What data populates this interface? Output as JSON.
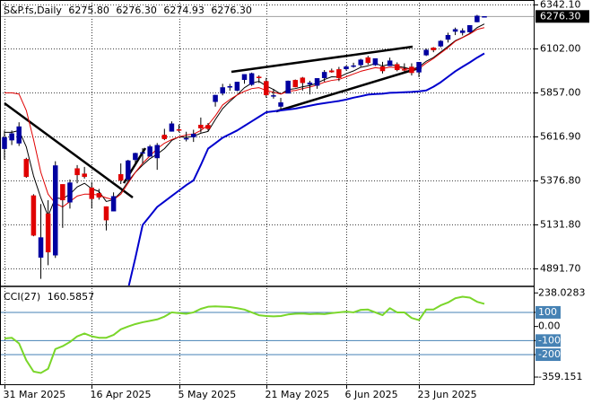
{
  "chart_data": [
    {
      "type": "candlestick",
      "header": {
        "symbol": "S&P.fs,Daily",
        "ohlc": [
          "6275.80",
          "6276.30",
          "6274.93",
          "6276.30"
        ]
      },
      "categories": [
        "31 Mar 2025",
        null,
        null,
        null,
        null,
        null,
        null,
        null,
        null,
        null,
        null,
        null,
        "16 Apr 2025",
        null,
        null,
        null,
        null,
        null,
        null,
        null,
        null,
        null,
        null,
        null,
        "5 May 2025",
        null,
        null,
        null,
        null,
        null,
        null,
        null,
        null,
        null,
        null,
        null,
        "21 May 2025",
        null,
        null,
        null,
        null,
        null,
        null,
        null,
        null,
        null,
        null,
        "6 Jun 2025",
        null,
        null,
        null,
        null,
        null,
        null,
        null,
        null,
        null,
        "23 Jun 2025",
        null,
        null,
        null,
        null,
        null,
        null,
        null,
        null,
        null
      ],
      "open": [
        5550,
        5597,
        5580,
        5492,
        5292,
        4953,
        5193,
        4965,
        5354,
        5256,
        5441,
        5412,
        5335,
        5305,
        5232,
        5207,
        5409,
        5381,
        5489,
        5529,
        5508,
        5499,
        5625,
        5645,
        5655,
        5605,
        5614,
        5680,
        5679,
        5808,
        5854,
        5887,
        5870,
        5929,
        5902,
        5944,
        5920,
        5842,
        5782,
        5854,
        5926,
        5939,
        5903,
        5897,
        5939,
        5978,
        5985,
        5988,
        6005,
        6010,
        6050,
        6010,
        6000,
        6005,
        6013,
        5985,
        5999,
        5970,
        6064,
        6104,
        6113,
        6150,
        6194,
        6187,
        6191,
        6246,
        6275.8
      ],
      "high": [
        5650,
        5650,
        5695,
        5500,
        5300,
        5246,
        5267,
        5481,
        5354,
        5381,
        5460,
        5450,
        5367,
        5329,
        5233,
        5310,
        5469,
        5489,
        5528,
        5553,
        5571,
        5581,
        5659,
        5700,
        5683,
        5643,
        5654,
        5721,
        5691,
        5846,
        5906,
        5906,
        5917,
        5958,
        5968,
        5953,
        5939,
        5878,
        5829,
        5924,
        5930,
        5944,
        5923,
        5937,
        5982,
        5990,
        5999,
        6007,
        6022,
        6044,
        6060,
        6046,
        6027,
        6050,
        6024,
        6019,
        6019,
        6025,
        6101,
        6108,
        6146,
        6187,
        6215,
        6211,
        6228,
        6285,
        6276.3
      ],
      "low": [
        5490,
        5570,
        5565,
        5390,
        5069,
        4835,
        4910,
        4950,
        5115,
        5221,
        5360,
        5386,
        5221,
        5270,
        5101,
        5207,
        5356,
        5372,
        5456,
        5468,
        5506,
        5434,
        5597,
        5644,
        5640,
        5590,
        5587,
        5639,
        5648,
        5781,
        5843,
        5868,
        5865,
        5907,
        5895,
        5911,
        5830,
        5825,
        5767,
        5854,
        5887,
        5869,
        5848,
        5879,
        5918,
        5967,
        5921,
        5979,
        5995,
        6000,
        6011,
        6005,
        5963,
        6004,
        5975,
        5974,
        5952,
        5943,
        6059,
        6080,
        6107,
        6133,
        6174,
        6172,
        6187,
        6244,
        6274.93
      ],
      "close": [
        5612,
        5633,
        5671,
        5396,
        5074,
        5062,
        4982,
        5457,
        5268,
        5363,
        5406,
        5396,
        5275,
        5283,
        5158,
        5288,
        5376,
        5484,
        5525,
        5529,
        5561,
        5569,
        5604,
        5687,
        5650,
        5607,
        5631,
        5663,
        5660,
        5844,
        5886,
        5892,
        5916,
        5958,
        5963,
        5940,
        5845,
        5842,
        5803,
        5922,
        5889,
        5912,
        5912,
        5936,
        5970,
        5971,
        5939,
        6000,
        6006,
        6038,
        6022,
        6045,
        5977,
        6033,
        5983,
        5981,
        5967,
        6025,
        6092,
        6092,
        6141,
        6173,
        6205,
        6198,
        6227,
        6279,
        6276.3
      ],
      "up_color": "#0000a0",
      "down_color": "#e00000",
      "series": [
        {
          "color": "#000000",
          "width": 1,
          "values": [
            5640,
            5640,
            5650,
            5560,
            5400,
            5280,
            5180,
            5280,
            5275,
            5300,
            5340,
            5360,
            5330,
            5315,
            5260,
            5270,
            5310,
            5370,
            5420,
            5460,
            5495,
            5520,
            5550,
            5595,
            5615,
            5612,
            5618,
            5635,
            5645,
            5710,
            5770,
            5810,
            5845,
            5885,
            5910,
            5920,
            5895,
            5875,
            5850,
            5875,
            5880,
            5890,
            5897,
            5910,
            5930,
            5945,
            5943,
            5962,
            5977,
            5997,
            6005,
            6018,
            6004,
            6014,
            6003,
            5996,
            5986,
            5999,
            6030,
            6051,
            6081,
            6112,
            6143,
            6161,
            6183,
            6215,
            6235
          ]
        },
        {
          "color": "#e00000",
          "width": 1,
          "values": [
            5857,
            5857,
            5850,
            5760,
            5600,
            5420,
            5300,
            5250,
            5230,
            5260,
            5290,
            5300,
            5300,
            5295,
            5280,
            5270,
            5300,
            5360,
            5420,
            5470,
            5510,
            5550,
            5580,
            5600,
            5615,
            5625,
            5630,
            5650,
            5680,
            5730,
            5790,
            5820,
            5845,
            5865,
            5880,
            5885,
            5870,
            5860,
            5850,
            5865,
            5870,
            5880,
            5888,
            5900,
            5915,
            5925,
            5930,
            5945,
            5960,
            5975,
            5985,
            5995,
            5990,
            5998,
            5995,
            5990,
            5985,
            5990,
            6020,
            6045,
            6075,
            6105,
            6140,
            6160,
            6180,
            6205,
            6215
          ]
        },
        {
          "color": "#0000cd",
          "width": 2,
          "values": [
            null,
            null,
            null,
            null,
            null,
            null,
            null,
            null,
            null,
            null,
            null,
            null,
            null,
            null,
            null,
            null,
            null,
            4780,
            4950,
            5131,
            5180,
            5230,
            5260,
            5290,
            5320,
            5350,
            5376,
            5460,
            5550,
            5580,
            5610,
            5630,
            5650,
            5675,
            5700,
            5725,
            5750,
            5755,
            5760,
            5765,
            5770,
            5778,
            5786,
            5794,
            5800,
            5806,
            5812,
            5820,
            5830,
            5838,
            5847,
            5850,
            5852,
            5857,
            5858,
            5860,
            5862,
            5865,
            5870,
            5890,
            5915,
            5945,
            5975,
            6000,
            6024,
            6050,
            6073
          ]
        }
      ],
      "ylim": [
        4798.6,
        6366.6
      ],
      "yticks": [
        {
          "value": 6342.1,
          "label": "6342.10"
        },
        {
          "value": 6102,
          "label": "6102.00"
        },
        {
          "value": 5857,
          "label": "5857.00"
        },
        {
          "value": 5616.9,
          "label": "5616.90"
        },
        {
          "value": 5376.8,
          "label": "5376.80"
        },
        {
          "value": 5131.8,
          "label": "5131.80"
        },
        {
          "value": 4891.7,
          "label": "4891.70"
        }
      ],
      "current_price": {
        "value": 6276.3,
        "label": "6276.30"
      },
      "grid": true
    },
    {
      "type": "line",
      "title": "CCI(27)",
      "last_label": "160.5857",
      "color": "#7ad62a",
      "level_color": "#4682b4",
      "values": [
        -85,
        -80,
        -120,
        -240,
        -320,
        -330,
        -300,
        -160,
        -140,
        -110,
        -70,
        -50,
        -70,
        -80,
        -80,
        -60,
        -20,
        0,
        17,
        30,
        40,
        50,
        70,
        100,
        95,
        90,
        100,
        125,
        140,
        143,
        140,
        138,
        130,
        120,
        100,
        80,
        74,
        72,
        74,
        85,
        90,
        92,
        88,
        90,
        88,
        95,
        100,
        105,
        100,
        118,
        120,
        100,
        80,
        130,
        100,
        100,
        60,
        45,
        120,
        120,
        150,
        170,
        200,
        211,
        205,
        175,
        160.5857
      ],
      "ylim": [
        -410,
        278
      ],
      "yticks": [
        238.0283,
        100,
        {
          "value": 0,
          "label": "0.00"
        },
        -100,
        -200,
        -359.151
      ],
      "levels": [
        100,
        -100,
        -200
      ],
      "grid": true
    }
  ]
}
